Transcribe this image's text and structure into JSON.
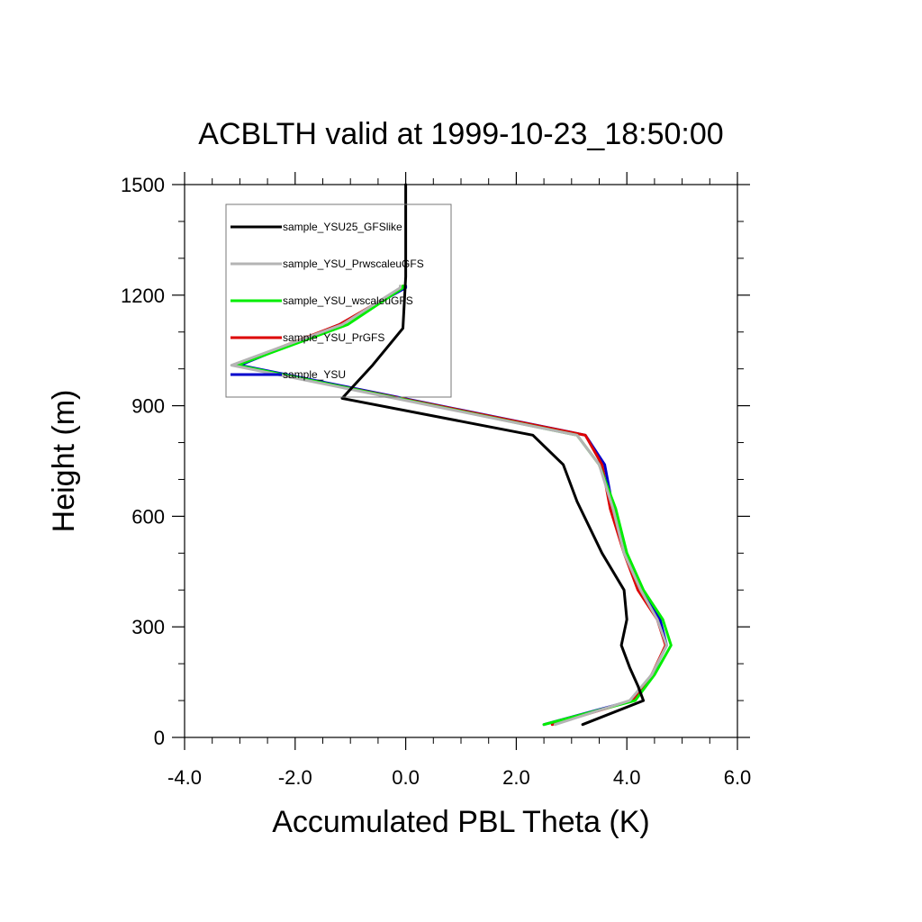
{
  "chart_data": {
    "type": "line",
    "title": "ACBLTH valid at 1999-10-23_18:50:00",
    "xlabel": "Accumulated PBL Theta (K)",
    "ylabel": "Height (m)",
    "xlim": [
      -4.0,
      6.0
    ],
    "ylim": [
      0,
      1500
    ],
    "x_ticks": [
      "-4.0",
      "-2.0",
      "0.0",
      "2.0",
      "4.0",
      "6.0"
    ],
    "y_ticks": [
      "0",
      "300",
      "600",
      "900",
      "1200",
      "1500"
    ],
    "x_tick_values": [
      -4,
      -2,
      0,
      2,
      4,
      6
    ],
    "y_tick_values": [
      0,
      300,
      600,
      900,
      1200,
      1500
    ],
    "grid": false,
    "legend_position": "top-left",
    "series": [
      {
        "name": "sample_YSU",
        "color": "#0000cc",
        "x": [
          2.5,
          4.1,
          4.45,
          4.72,
          4.6,
          4.25,
          3.95,
          3.75,
          3.6,
          3.25,
          -3.0,
          -1.2,
          0.0,
          0.0
        ],
        "y": [
          35,
          100,
          170,
          250,
          320,
          400,
          500,
          620,
          740,
          820,
          1010,
          1120,
          1220,
          1225
        ]
      },
      {
        "name": "sample_YSU_PrGFS",
        "color": "#dd0000",
        "x": [
          2.65,
          4.1,
          4.45,
          4.7,
          4.55,
          4.2,
          3.95,
          3.7,
          3.55,
          3.25,
          -3.1,
          -1.2,
          -0.05,
          -0.05
        ],
        "y": [
          35,
          100,
          170,
          250,
          320,
          400,
          500,
          620,
          740,
          820,
          1010,
          1120,
          1220,
          1225
        ]
      },
      {
        "name": "sample_YSU_wscaleuGFS",
        "color": "#00ee00",
        "x": [
          2.5,
          4.15,
          4.5,
          4.8,
          4.65,
          4.3,
          4.0,
          3.8,
          3.5,
          3.1,
          -3.05,
          -1.05,
          -0.05,
          -0.05
        ],
        "y": [
          35,
          100,
          170,
          250,
          320,
          400,
          500,
          620,
          740,
          820,
          1010,
          1120,
          1220,
          1225
        ]
      },
      {
        "name": "sample_YSU_PrwscaleuGFS",
        "color": "#b4b4b4",
        "x": [
          2.7,
          4.05,
          4.45,
          4.72,
          4.55,
          4.25,
          3.95,
          3.75,
          3.5,
          3.1,
          -3.15,
          -1.15,
          -0.1,
          -0.1
        ],
        "y": [
          35,
          100,
          170,
          250,
          320,
          400,
          500,
          620,
          740,
          820,
          1010,
          1120,
          1220,
          1225
        ]
      },
      {
        "name": "sample_YSU25_GFSlike",
        "color": "#000000",
        "x": [
          3.2,
          4.3,
          4.2,
          4.05,
          3.9,
          4.0,
          3.95,
          3.55,
          3.1,
          2.85,
          2.3,
          -1.15,
          -0.6,
          -0.05,
          0.0,
          0.0,
          0.0
        ],
        "y": [
          35,
          100,
          140,
          190,
          250,
          320,
          400,
          500,
          640,
          740,
          820,
          920,
          1010,
          1110,
          1250,
          1400,
          1500
        ]
      }
    ]
  }
}
